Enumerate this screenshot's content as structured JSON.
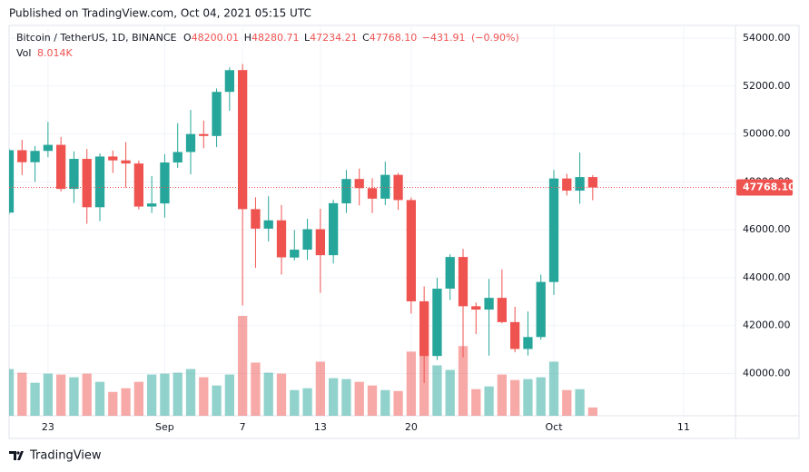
{
  "header": {
    "published": "Published on TradingView.com, Oct 04, 2021 05:15 UTC",
    "brand": "TradingView"
  },
  "chart_data": {
    "type": "candlestick",
    "symbol": "Bitcoin / TetherUS, 1D, BINANCE",
    "legend": {
      "open_key": "O",
      "open": 48200.01,
      "high_key": "H",
      "high": 48280.71,
      "low_key": "L",
      "low": 47234.21,
      "close_key": "C",
      "close": {
        "value": 47768.1,
        "label": "47768.10"
      },
      "change": {
        "value": -431.91,
        "label": "−431.91"
      },
      "change_pct": {
        "value": -0.9,
        "label": "(−0.90%)"
      },
      "volume_key": "Vol",
      "volume": {
        "value": 8014,
        "label": "8.014K"
      }
    },
    "last_price": {
      "value": 47768.1,
      "label": "47768.10"
    },
    "x": [
      "2021-08-20",
      "2021-08-21",
      "2021-08-22",
      "2021-08-23",
      "2021-08-24",
      "2021-08-25",
      "2021-08-26",
      "2021-08-27",
      "2021-08-28",
      "2021-08-29",
      "2021-08-30",
      "2021-08-31",
      "2021-09-01",
      "2021-09-02",
      "2021-09-03",
      "2021-09-04",
      "2021-09-05",
      "2021-09-06",
      "2021-09-07",
      "2021-09-08",
      "2021-09-09",
      "2021-09-10",
      "2021-09-11",
      "2021-09-12",
      "2021-09-13",
      "2021-09-14",
      "2021-09-15",
      "2021-09-16",
      "2021-09-17",
      "2021-09-18",
      "2021-09-19",
      "2021-09-20",
      "2021-09-21",
      "2021-09-22",
      "2021-09-23",
      "2021-09-24",
      "2021-09-25",
      "2021-09-26",
      "2021-09-27",
      "2021-09-28",
      "2021-09-29",
      "2021-09-30",
      "2021-10-01",
      "2021-10-02",
      "2021-10-03",
      "2021-10-04"
    ],
    "open": [
      46717,
      49322,
      48821,
      49292,
      49546,
      47706,
      48960,
      46942,
      49058,
      48897,
      48767,
      46970,
      47100,
      48810,
      49247,
      49996,
      49915,
      51756,
      52666,
      46863,
      46048,
      46395,
      44842,
      45171,
      46025,
      44940,
      47103,
      48121,
      47737,
      47299,
      48292,
      47241,
      43016,
      40734,
      43546,
      44866,
      42810,
      42670,
      43160,
      42147,
      41025,
      41524,
      43820,
      48141,
      47634,
      48200.01
    ],
    "high": [
      49382,
      49757,
      49500,
      50500,
      49875,
      49277,
      49372,
      49188,
      49309,
      49657,
      48888,
      48246,
      49156,
      50450,
      51000,
      50558,
      51900,
      52780,
      52920,
      47359,
      47400,
      47033,
      45987,
      46460,
      46880,
      47250,
      48500,
      48557,
      48150,
      48843,
      48372,
      47347,
      43639,
      44000,
      44978,
      45200,
      42966,
      43950,
      44350,
      42787,
      42590,
      44132,
      48495,
      48336,
      49228,
      48280.71
    ],
    "low": [
      46640,
      48285,
      48000,
      49029,
      47600,
      47122,
      46250,
      46363,
      48370,
      47762,
      46853,
      46700,
      46512,
      48584,
      48316,
      49400,
      49450,
      50969,
      42843,
      44412,
      45513,
      44132,
      44722,
      44742,
      43370,
      44594,
      46700,
      47021,
      46699,
      47033,
      46829,
      42500,
      39600,
      40565,
      43069,
      40675,
      41646,
      40750,
      42098,
      40888,
      40753,
      41410,
      43283,
      47430,
      47088,
      47234.21
    ],
    "close": [
      49322,
      48821,
      49292,
      49546,
      47706,
      48960,
      46942,
      49058,
      48897,
      48767,
      46970,
      47100,
      48810,
      49247,
      49996,
      49915,
      51756,
      52663,
      46863,
      46049,
      46395,
      44851,
      45171,
      46025,
      44940,
      47111,
      48121,
      47737,
      47299,
      48293,
      47241,
      43015,
      40734,
      43543,
      44865,
      42810,
      42670,
      43160,
      42147,
      41026,
      41524,
      43824,
      48141,
      47634,
      48200,
      47768.1
    ],
    "volume": [
      45390,
      41830,
      32040,
      40940,
      40050,
      37380,
      40940,
      32930,
      23140,
      26700,
      32930,
      40050,
      40940,
      41830,
      45390,
      37380,
      29370,
      40050,
      97010,
      51620,
      41830,
      40940,
      24920,
      26700,
      52510,
      36490,
      35600,
      32930,
      29370,
      24920,
      24030,
      62300,
      64080,
      48950,
      44500,
      67640,
      25810,
      28480,
      40050,
      34710,
      35600,
      37380,
      52510,
      24920,
      25810,
      8014
    ],
    "up_color": "#26a69a",
    "down_color": "#ef5350",
    "xlim": [
      "2021-08-20",
      "2021-10-15"
    ],
    "xticks": [
      {
        "value": "2021-08-23",
        "label": "23"
      },
      {
        "value": "2021-09-01",
        "label": "Sep"
      },
      {
        "value": "2021-09-07",
        "label": "7"
      },
      {
        "value": "2021-09-13",
        "label": "13"
      },
      {
        "value": "2021-09-20",
        "label": "20"
      },
      {
        "value": "2021-10-01",
        "label": "Oct"
      },
      {
        "value": "2021-10-11",
        "label": "11"
      }
    ],
    "ylim": [
      38240,
      54530
    ],
    "yticks": [
      {
        "value": 40000,
        "label": "40000.00"
      },
      {
        "value": 42000,
        "label": "42000.00"
      },
      {
        "value": 44000,
        "label": "44000.00"
      },
      {
        "value": 46000,
        "label": "46000.00"
      },
      {
        "value": 48000,
        "label": "48000.00"
      },
      {
        "value": 50000,
        "label": "50000.00"
      },
      {
        "value": 52000,
        "label": "52000.00"
      },
      {
        "value": 54000,
        "label": "54000.00"
      }
    ],
    "grid": true
  }
}
